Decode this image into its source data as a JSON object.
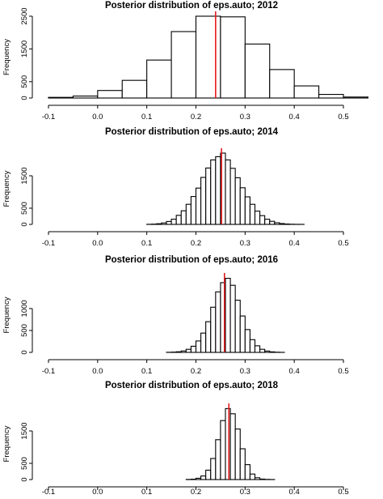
{
  "chart_data": [
    {
      "type": "histogram",
      "title": "Posterior distribution of eps.auto; 2012",
      "xlabel": "",
      "ylabel": "Frequency",
      "xlim": [
        -0.1,
        0.5
      ],
      "ylim": [
        0,
        2500
      ],
      "x_ticks": [
        "-0.1",
        "0.0",
        "0.1",
        "0.2",
        "0.3",
        "0.4",
        "0.5"
      ],
      "y_ticks": [
        "0",
        "500",
        "1500",
        "2500"
      ],
      "bin_start": -0.1,
      "bin_width": 0.05,
      "counts": [
        20,
        60,
        230,
        540,
        1160,
        2030,
        2500,
        2480,
        1650,
        870,
        370,
        110,
        30
      ],
      "vline": 0.24,
      "vline_color": "#e41a1c"
    },
    {
      "type": "histogram",
      "title": "Posterior distribution of eps.auto; 2014",
      "xlabel": "",
      "ylabel": "Frequency",
      "xlim": [
        -0.1,
        0.5
      ],
      "ylim": [
        0,
        2200
      ],
      "x_ticks": [
        "-0.1",
        "0.0",
        "0.1",
        "0.2",
        "0.3",
        "0.4",
        "0.5"
      ],
      "y_ticks": [
        "0",
        "500",
        "1500"
      ],
      "bin_start": 0.1,
      "bin_width": 0.01,
      "counts": [
        3,
        8,
        20,
        45,
        90,
        160,
        280,
        420,
        620,
        860,
        1120,
        1450,
        1740,
        1990,
        2090,
        2200,
        1990,
        1730,
        1440,
        1130,
        850,
        620,
        410,
        270,
        160,
        95,
        50,
        25,
        12,
        5,
        2,
        1
      ],
      "vline": 0.252,
      "vline_color": "#e41a1c"
    },
    {
      "type": "histogram",
      "title": "Posterior distribution of eps.auto; 2016",
      "xlabel": "",
      "ylabel": "Frequency",
      "xlim": [
        -0.1,
        0.5
      ],
      "ylim": [
        0,
        1700
      ],
      "x_ticks": [
        "-0.1",
        "0.0",
        "0.1",
        "0.2",
        "0.3",
        "0.4",
        "0.5"
      ],
      "y_ticks": [
        "0",
        "500",
        "1000"
      ],
      "bin_start": 0.14,
      "bin_width": 0.01,
      "counts": [
        2,
        6,
        14,
        32,
        70,
        140,
        260,
        440,
        700,
        1030,
        1380,
        1590,
        1690,
        1530,
        1190,
        830,
        520,
        290,
        150,
        70,
        30,
        12,
        4,
        1
      ],
      "vline": 0.258,
      "vline_color": "#e41a1c"
    },
    {
      "type": "histogram",
      "title": "Posterior distribution of eps.auto; 2018",
      "xlabel": "",
      "ylabel": "Frequency",
      "xlim": [
        -0.1,
        0.5
      ],
      "ylim": [
        0,
        2200
      ],
      "x_ticks": [
        "-0.1",
        "0.0",
        "0.1",
        "0.2",
        "0.3",
        "0.4",
        "0.5"
      ],
      "y_ticks": [
        "0",
        "500",
        "1500"
      ],
      "bin_start": 0.18,
      "bin_width": 0.01,
      "counts": [
        4,
        12,
        40,
        110,
        290,
        650,
        1230,
        1820,
        2190,
        2030,
        1560,
        950,
        460,
        170,
        55,
        15,
        5,
        2
      ],
      "vline": 0.267,
      "vline_color": "#e41a1c"
    }
  ]
}
